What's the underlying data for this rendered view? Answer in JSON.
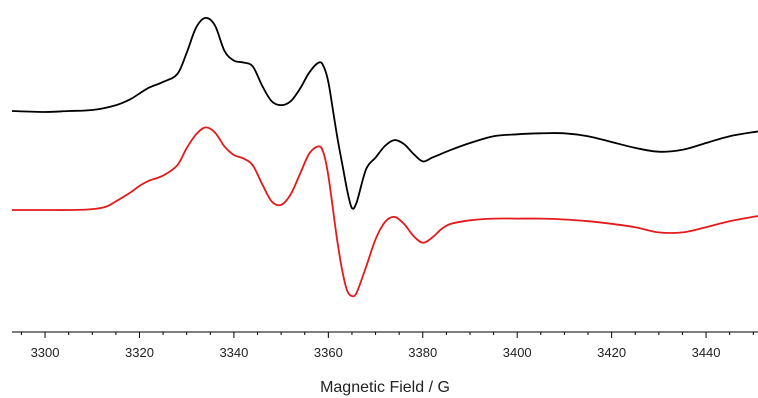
{
  "chart_data": {
    "type": "line",
    "title": "",
    "xlabel": "Magnetic Field / G",
    "ylabel": "",
    "xlim": [
      3293,
      3451
    ],
    "ylim": [
      -1.45,
      1.25
    ],
    "x_ticks": [
      3300,
      3320,
      3340,
      3360,
      3380,
      3400,
      3420,
      3440
    ],
    "x_tick_labels": [
      "3300",
      "3320",
      "3340",
      "3360",
      "3380",
      "3400",
      "3420",
      "3440"
    ],
    "minor_tick_step": 5,
    "grid": false,
    "legend": "none",
    "series": [
      {
        "color": "#000000",
        "x": [
          3293,
          3300,
          3305,
          3310,
          3315,
          3318,
          3320,
          3322,
          3325,
          3328,
          3330,
          3332,
          3334,
          3336,
          3338,
          3340,
          3342,
          3344,
          3346,
          3348,
          3350,
          3352,
          3354,
          3356,
          3358,
          3359,
          3360,
          3361,
          3362,
          3363,
          3364,
          3365,
          3366,
          3368,
          3370,
          3372,
          3374,
          3376,
          3378,
          3380,
          3382,
          3384,
          3386,
          3390,
          3395,
          3400,
          3405,
          3410,
          3415,
          3420,
          3425,
          3430,
          3435,
          3440,
          3445,
          3451
        ],
        "y": [
          0.0,
          -0.01,
          0.0,
          0.01,
          0.06,
          0.12,
          0.18,
          0.24,
          0.3,
          0.38,
          0.6,
          0.86,
          0.96,
          0.88,
          0.62,
          0.52,
          0.5,
          0.46,
          0.26,
          0.1,
          0.06,
          0.1,
          0.23,
          0.4,
          0.5,
          0.46,
          0.3,
          0.0,
          -0.3,
          -0.56,
          -0.82,
          -1.0,
          -0.94,
          -0.6,
          -0.48,
          -0.36,
          -0.3,
          -0.34,
          -0.44,
          -0.52,
          -0.48,
          -0.44,
          -0.4,
          -0.33,
          -0.26,
          -0.24,
          -0.23,
          -0.23,
          -0.26,
          -0.32,
          -0.38,
          -0.42,
          -0.4,
          -0.33,
          -0.26,
          -0.21
        ]
      },
      {
        "color": "#e31a1c",
        "x": [
          3293,
          3300,
          3305,
          3310,
          3313,
          3315,
          3318,
          3320,
          3322,
          3325,
          3328,
          3330,
          3332,
          3334,
          3336,
          3338,
          3340,
          3342,
          3344,
          3346,
          3348,
          3350,
          3352,
          3354,
          3356,
          3358,
          3359,
          3360,
          3361,
          3362,
          3363,
          3364,
          3365,
          3366,
          3368,
          3370,
          3372,
          3374,
          3376,
          3378,
          3380,
          3382,
          3384,
          3386,
          3390,
          3395,
          3400,
          3405,
          3410,
          3415,
          3420,
          3425,
          3430,
          3435,
          3440,
          3445,
          3451
        ],
        "y": [
          0.0,
          0.0,
          0.0,
          0.01,
          0.04,
          0.1,
          0.2,
          0.28,
          0.34,
          0.4,
          0.52,
          0.72,
          0.88,
          0.96,
          0.9,
          0.74,
          0.64,
          0.6,
          0.52,
          0.3,
          0.1,
          0.06,
          0.18,
          0.42,
          0.66,
          0.74,
          0.66,
          0.4,
          0.0,
          -0.4,
          -0.72,
          -0.94,
          -1.0,
          -0.96,
          -0.66,
          -0.34,
          -0.14,
          -0.08,
          -0.16,
          -0.3,
          -0.38,
          -0.32,
          -0.22,
          -0.16,
          -0.12,
          -0.1,
          -0.1,
          -0.1,
          -0.11,
          -0.13,
          -0.16,
          -0.2,
          -0.26,
          -0.26,
          -0.2,
          -0.13,
          -0.07
        ]
      }
    ]
  }
}
